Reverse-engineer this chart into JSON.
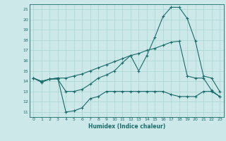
{
  "title": "",
  "xlabel": "Humidex (Indice chaleur)",
  "bg_color": "#cce8e8",
  "grid_color": "#a8d4d0",
  "line_color": "#1a6b6b",
  "xlim": [
    -0.5,
    23.5
  ],
  "ylim": [
    10.5,
    21.5
  ],
  "yticks": [
    11,
    12,
    13,
    14,
    15,
    16,
    17,
    18,
    19,
    20,
    21
  ],
  "xticks": [
    0,
    1,
    2,
    3,
    4,
    5,
    6,
    7,
    8,
    9,
    10,
    11,
    12,
    13,
    14,
    15,
    16,
    17,
    18,
    19,
    20,
    21,
    22,
    23
  ],
  "line1_x": [
    0,
    1,
    2,
    3,
    4,
    5,
    6,
    7,
    8,
    9,
    10,
    11,
    12,
    13,
    14,
    15,
    16,
    17,
    18,
    19,
    20,
    21,
    22,
    23
  ],
  "line1_y": [
    14.3,
    13.9,
    14.2,
    14.2,
    13.0,
    13.0,
    13.2,
    13.7,
    14.3,
    14.6,
    15.0,
    15.8,
    16.5,
    15.0,
    16.5,
    18.3,
    20.3,
    21.2,
    21.2,
    20.1,
    17.9,
    14.5,
    14.3,
    13.0
  ],
  "line2_x": [
    0,
    1,
    2,
    3,
    4,
    5,
    6,
    7,
    8,
    9,
    10,
    11,
    12,
    13,
    14,
    15,
    16,
    17,
    18,
    19,
    20,
    21,
    22,
    23
  ],
  "line2_y": [
    14.3,
    13.9,
    14.2,
    14.3,
    11.0,
    11.1,
    11.4,
    12.3,
    12.5,
    13.0,
    13.0,
    13.0,
    13.0,
    13.0,
    13.0,
    13.0,
    13.0,
    12.7,
    12.5,
    12.5,
    12.5,
    13.0,
    13.0,
    12.5
  ],
  "line3_x": [
    0,
    1,
    2,
    3,
    4,
    5,
    6,
    7,
    8,
    9,
    10,
    11,
    12,
    13,
    14,
    15,
    16,
    17,
    18,
    19,
    20,
    21,
    22,
    23
  ],
  "line3_y": [
    14.3,
    14.0,
    14.2,
    14.3,
    14.3,
    14.5,
    14.7,
    15.0,
    15.3,
    15.6,
    15.9,
    16.2,
    16.5,
    16.7,
    17.0,
    17.2,
    17.5,
    17.8,
    17.9,
    14.5,
    14.3,
    14.3,
    13.1,
    12.5
  ]
}
